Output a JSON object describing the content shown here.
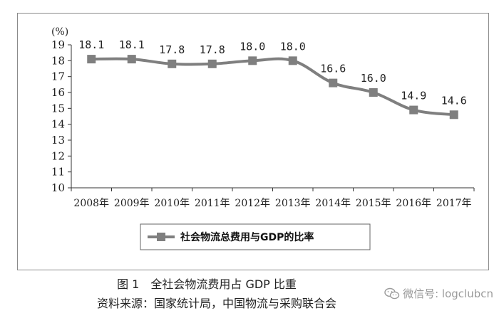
{
  "chart_data": {
    "type": "line",
    "categories": [
      "2008年",
      "2009年",
      "2010年",
      "2011年",
      "2012年",
      "2013年",
      "2014年",
      "2015年",
      "2016年",
      "2017年"
    ],
    "series": [
      {
        "name": "社会物流总费用与GDP的比率",
        "values": [
          18.1,
          18.1,
          17.8,
          17.8,
          18.0,
          18.0,
          16.6,
          16.0,
          14.9,
          14.6
        ],
        "labels": [
          "18.1",
          "18.1",
          "17.8",
          "17.8",
          "18.0",
          "18.0",
          "16.6",
          "16.0",
          "14.9",
          "14.6"
        ]
      }
    ],
    "ylim": [
      10,
      19
    ],
    "yticks": [
      "10",
      "11",
      "12",
      "13",
      "14",
      "15",
      "16",
      "17",
      "18",
      "19"
    ],
    "yunit": "(%)",
    "grid": false,
    "legend_position": "bottom",
    "series_color": "#7f7f7f"
  },
  "caption": {
    "title": "图 1　全社会物流费用占 GDP 比重",
    "source": "资料来源：国家统计局，中国物流与采购联合会"
  },
  "watermark": {
    "icon": "wechat-icon",
    "text": "微信号: logclubcn"
  }
}
